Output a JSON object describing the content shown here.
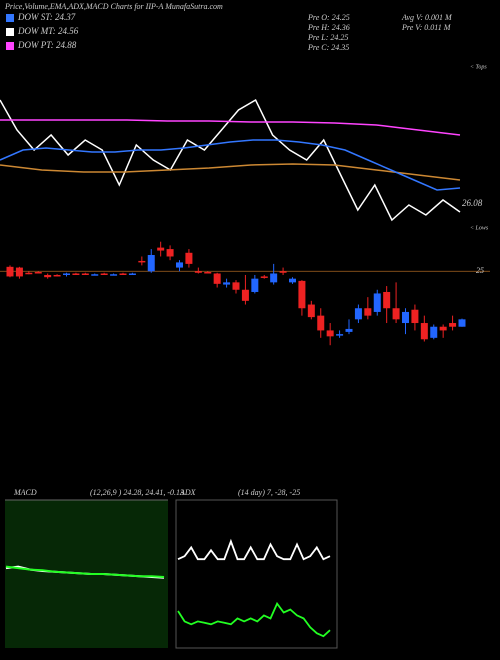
{
  "title": "Price,Volume,EMA,ADX,MACD Charts for IIP-A MunafaSutra.com",
  "legend": [
    {
      "name": "DOW ST: 24.37",
      "color": "#3377ff"
    },
    {
      "name": "DOW MT: 24.56",
      "color": "#ffffff"
    },
    {
      "name": "DOW PT: 24.88",
      "color": "#ff44ff"
    }
  ],
  "stats": [
    "Pre  O: 24.25",
    "Pre  H: 24.36",
    "Pre  L: 24.25",
    "Pre  C: 24.35",
    "Avg V: 0.001 M",
    "Pre  V: 0.011 M"
  ],
  "tops_label": "< Tops",
  "lows_label": "< Lows",
  "ema_chart": {
    "type": "line",
    "ylim": [
      25.9,
      27.4
    ],
    "last_label": "26.08",
    "series": [
      {
        "name": "price",
        "color": "#ffffff",
        "values": [
          27.2,
          26.9,
          26.7,
          26.85,
          26.65,
          26.8,
          26.7,
          26.35,
          26.75,
          26.6,
          26.5,
          26.8,
          26.7,
          26.9,
          27.1,
          27.2,
          26.85,
          26.7,
          26.6,
          26.8,
          26.45,
          26.1,
          26.35,
          26.0,
          26.15,
          26.05,
          26.2,
          26.08
        ]
      },
      {
        "name": "pt",
        "color": "#ff44ff",
        "values": [
          27.0,
          27.0,
          27.0,
          27.0,
          26.99,
          26.99,
          26.98,
          26.98,
          26.97,
          26.95,
          26.9,
          26.85
        ]
      },
      {
        "name": "mt",
        "color": "#cc8833",
        "values": [
          26.55,
          26.5,
          26.48,
          26.48,
          26.5,
          26.52,
          26.55,
          26.56,
          26.55,
          26.5,
          26.45,
          26.4
        ]
      },
      {
        "name": "st",
        "color": "#3377ff",
        "values": [
          26.6,
          26.7,
          26.72,
          26.7,
          26.68,
          26.68,
          26.7,
          26.7,
          26.72,
          26.75,
          26.78,
          26.8,
          26.8,
          26.78,
          26.75,
          26.7,
          26.6,
          26.5,
          26.4,
          26.3,
          26.32
        ]
      }
    ]
  },
  "candle_chart": {
    "type": "candlestick",
    "ylim": [
      23.8,
      25.45
    ],
    "ref_line": 25,
    "up_color": "#2266ff",
    "down_color": "#ee2222",
    "candles": [
      [
        25.06,
        25.08,
        24.92,
        24.93
      ],
      [
        25.05,
        25.06,
        24.9,
        24.93
      ],
      [
        24.98,
        25.0,
        24.96,
        24.97
      ],
      [
        24.99,
        25.0,
        24.97,
        24.98
      ],
      [
        24.95,
        24.97,
        24.9,
        24.92
      ],
      [
        24.95,
        24.96,
        24.93,
        24.93
      ],
      [
        24.95,
        24.98,
        24.93,
        24.97
      ],
      [
        24.97,
        24.98,
        24.95,
        24.96
      ],
      [
        24.97,
        24.98,
        24.95,
        24.96
      ],
      [
        24.96,
        24.97,
        24.95,
        24.96
      ],
      [
        24.97,
        24.98,
        24.95,
        24.96
      ],
      [
        24.96,
        24.97,
        24.95,
        24.96
      ],
      [
        24.97,
        24.98,
        24.95,
        24.96
      ],
      [
        24.97,
        24.98,
        24.96,
        24.97
      ],
      [
        25.14,
        25.2,
        25.08,
        25.12
      ],
      [
        25.0,
        25.3,
        24.98,
        25.22
      ],
      [
        25.32,
        25.4,
        25.2,
        25.28
      ],
      [
        25.3,
        25.35,
        25.15,
        25.2
      ],
      [
        25.05,
        25.15,
        25.0,
        25.12
      ],
      [
        25.25,
        25.3,
        25.05,
        25.1
      ],
      [
        25.0,
        25.05,
        24.97,
        24.99
      ],
      [
        24.99,
        25.0,
        24.97,
        24.98
      ],
      [
        24.97,
        24.98,
        24.78,
        24.83
      ],
      [
        24.82,
        24.9,
        24.78,
        24.85
      ],
      [
        24.85,
        24.88,
        24.7,
        24.75
      ],
      [
        24.75,
        24.95,
        24.55,
        24.6
      ],
      [
        24.72,
        24.95,
        24.7,
        24.9
      ],
      [
        24.93,
        24.95,
        24.9,
        24.92
      ],
      [
        24.85,
        25.1,
        24.82,
        24.97
      ],
      [
        25.0,
        25.05,
        24.95,
        24.98
      ],
      [
        24.85,
        24.92,
        24.83,
        24.9
      ],
      [
        24.87,
        24.88,
        24.4,
        24.5
      ],
      [
        24.55,
        24.6,
        24.35,
        24.38
      ],
      [
        24.4,
        24.5,
        24.1,
        24.2
      ],
      [
        24.2,
        24.3,
        24.0,
        24.12
      ],
      [
        24.15,
        24.2,
        24.1,
        24.15
      ],
      [
        24.18,
        24.35,
        24.15,
        24.22
      ],
      [
        24.35,
        24.55,
        24.3,
        24.5
      ],
      [
        24.5,
        24.65,
        24.35,
        24.4
      ],
      [
        24.45,
        24.75,
        24.4,
        24.7
      ],
      [
        24.72,
        24.8,
        24.3,
        24.5
      ],
      [
        24.5,
        24.85,
        24.3,
        24.35
      ],
      [
        24.3,
        24.5,
        24.15,
        24.45
      ],
      [
        24.48,
        24.55,
        24.2,
        24.3
      ],
      [
        24.3,
        24.4,
        24.05,
        24.08
      ],
      [
        24.1,
        24.28,
        24.08,
        24.25
      ],
      [
        24.25,
        24.28,
        24.1,
        24.2
      ],
      [
        24.3,
        24.4,
        24.2,
        24.25
      ],
      [
        24.25,
        24.36,
        24.25,
        24.35
      ]
    ]
  },
  "macd_chart": {
    "type": "line",
    "label": "MACD",
    "params": "(12,26,9 ) 24.28, 24.41, -0.13",
    "ylim": [
      -1,
      1
    ],
    "series": [
      {
        "name": "macd",
        "color": "#ffffff",
        "values": [
          0.08,
          0.1,
          0.06,
          0.04,
          0.03,
          0.02,
          0.01,
          0.0,
          0.0,
          -0.01,
          -0.02,
          -0.03,
          -0.04,
          -0.05
        ]
      },
      {
        "name": "signal",
        "color": "#22ff22",
        "values": [
          0.1,
          0.08,
          0.06,
          0.05,
          0.03,
          0.02,
          0.01,
          0.0,
          0.0,
          -0.01,
          -0.02,
          -0.03,
          -0.03,
          -0.04
        ]
      }
    ]
  },
  "adx_chart": {
    "type": "line",
    "label": "ADX",
    "params": "(14 day) 7, -28, -25",
    "ylim": [
      0,
      100
    ],
    "series": [
      {
        "name": "adx",
        "color": "#ffffff",
        "values": [
          60,
          62,
          68,
          60,
          60,
          66,
          60,
          60,
          72,
          60,
          60,
          68,
          60,
          60,
          70,
          62,
          60,
          60,
          70,
          60,
          62,
          68,
          60,
          62
        ]
      },
      {
        "name": "di",
        "color": "#22ff22",
        "values": [
          25,
          18,
          16,
          18,
          17,
          16,
          18,
          17,
          16,
          20,
          18,
          20,
          18,
          22,
          20,
          30,
          24,
          26,
          22,
          20,
          14,
          10,
          8,
          12
        ]
      }
    ]
  }
}
